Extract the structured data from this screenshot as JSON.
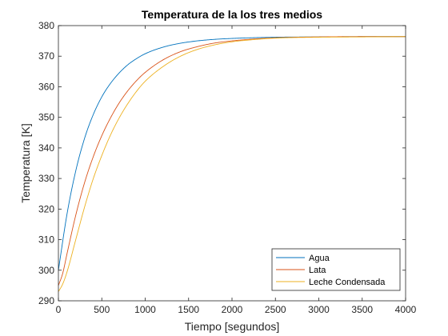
{
  "chart_data": {
    "type": "line",
    "title": "Temperatura de la los tres medios",
    "xlabel": "Tiempo [segundos]",
    "ylabel": "Temperatura [K]",
    "xlim": [
      0,
      4000
    ],
    "ylim": [
      290,
      380
    ],
    "xticks": [
      0,
      500,
      1000,
      1500,
      2000,
      2500,
      3000,
      3500,
      4000
    ],
    "yticks": [
      290,
      300,
      310,
      320,
      330,
      340,
      350,
      360,
      370,
      380
    ],
    "grid": false,
    "legend_position": "bottom-right",
    "series": [
      {
        "name": "Agua",
        "color": "#0072BD",
        "x": [
          0,
          100,
          200,
          300,
          400,
          500,
          600,
          700,
          800,
          900,
          1000,
          1200,
          1400,
          1600,
          1800,
          2000,
          2200,
          2500,
          3000,
          3500,
          4000
        ],
        "y": [
          300.0,
          318.5,
          332.5,
          343.0,
          350.8,
          356.7,
          361.1,
          364.5,
          367.2,
          369.2,
          370.8,
          372.9,
          374.2,
          375.0,
          375.5,
          375.8,
          376.0,
          376.2,
          376.3,
          376.4,
          376.4
        ]
      },
      {
        "name": "Lata",
        "color": "#D95319",
        "x": [
          0,
          50,
          100,
          200,
          300,
          400,
          500,
          600,
          700,
          800,
          900,
          1000,
          1200,
          1400,
          1600,
          1800,
          2000,
          2200,
          2500,
          3000,
          3500,
          4000
        ],
        "y": [
          295.0,
          299.0,
          305.5,
          318.0,
          328.5,
          337.0,
          344.0,
          349.8,
          354.7,
          358.7,
          362.0,
          364.7,
          368.7,
          371.4,
          373.1,
          374.3,
          375.0,
          375.5,
          376.0,
          376.3,
          376.4,
          376.4
        ]
      },
      {
        "name": "Leche Condensada",
        "color": "#EDB120",
        "x": [
          0,
          50,
          100,
          200,
          300,
          400,
          500,
          600,
          700,
          800,
          900,
          1000,
          1200,
          1400,
          1600,
          1800,
          2000,
          2200,
          2500,
          3000,
          3500,
          4000
        ],
        "y": [
          293.0,
          295.5,
          299.5,
          310.0,
          320.5,
          329.8,
          337.5,
          344.2,
          349.8,
          354.5,
          358.5,
          361.8,
          366.5,
          369.9,
          372.2,
          373.7,
          374.7,
          375.3,
          375.9,
          376.2,
          376.3,
          376.4
        ]
      }
    ]
  }
}
